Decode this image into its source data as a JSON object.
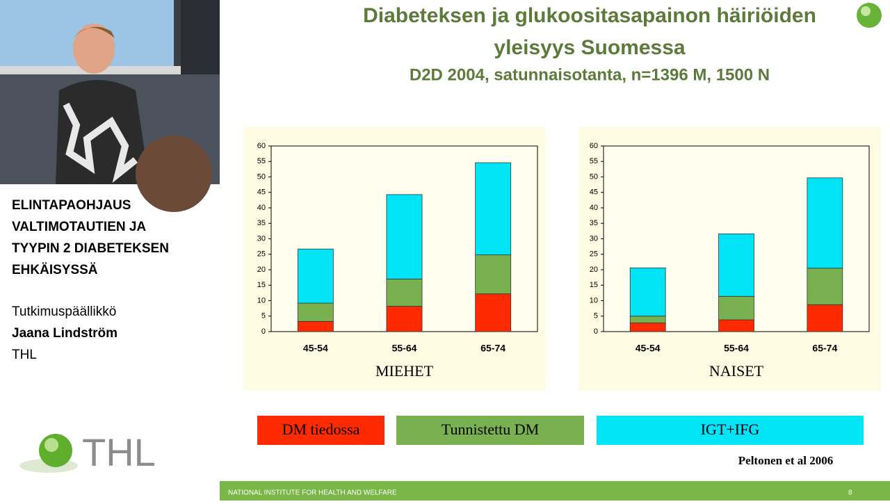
{
  "slide": {
    "title_lines": [
      "Diabeteksen ja glukoositasapainon häiriöiden",
      "yleisyys Suomessa"
    ],
    "subtitle": "D2D 2004, satunnaisotanta, n=1396 M, 1500 N",
    "citation": "Peltonen et al 2006",
    "footer": "NATIONAL INSTITUTE FOR HEALTH AND WELFARE",
    "page_number": "8"
  },
  "sidebar": {
    "heading_lines": [
      "ELINTAPAOHJAUS",
      "VALTIMOTAUTIEN JA",
      "TYYPIN 2 DIABETEKSEN",
      "EHKÄISYSSÄ"
    ],
    "role": "Tutkimuspäällikkö",
    "name": "Jaana Lindström",
    "organization": "THL",
    "logo_text": "THL"
  },
  "chart_data": [
    {
      "type": "stacked_bar",
      "xlabel": "MIEHET",
      "categories": [
        "45-54",
        "55-64",
        "65-74"
      ],
      "series": [
        {
          "name": "DM tiedossa",
          "color": "#ff2a00",
          "values": [
            3.3,
            8.2,
            12.2
          ]
        },
        {
          "name": "Tunnistettu DM",
          "color": "#79b050",
          "values": [
            5.9,
            8.8,
            12.6
          ]
        },
        {
          "name": "IGT+IFG",
          "color": "#00e4f5",
          "values": [
            17.5,
            27.3,
            29.8
          ]
        }
      ],
      "ylim": [
        0,
        60
      ],
      "yticks": [
        0,
        5,
        10,
        15,
        20,
        25,
        30,
        35,
        40,
        45,
        50,
        55,
        60
      ],
      "grid": false
    },
    {
      "type": "stacked_bar",
      "xlabel": "NAISET",
      "categories": [
        "45-54",
        "55-64",
        "65-74"
      ],
      "series": [
        {
          "color": "#ff2a00",
          "values": [
            2.8,
            3.8,
            8.7
          ]
        },
        {
          "color": "#79b050",
          "values": [
            2.2,
            7.6,
            11.8
          ]
        },
        {
          "color": "#00e4f5",
          "values": [
            15.6,
            20.2,
            29.2
          ]
        }
      ],
      "ylim": [
        0,
        60
      ],
      "yticks": [
        0,
        5,
        10,
        15,
        20,
        25,
        30,
        35,
        40,
        45,
        50,
        55,
        60
      ],
      "grid": false
    }
  ]
}
